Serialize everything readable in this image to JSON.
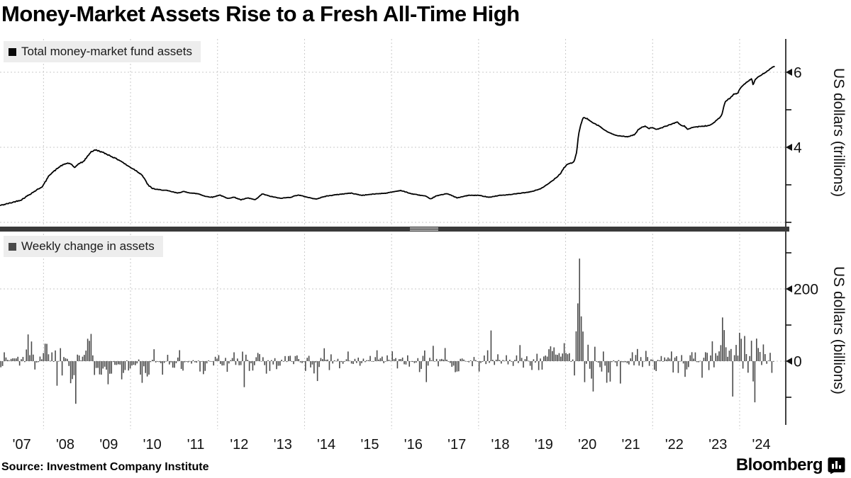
{
  "title": "Money-Market Assets Rise to a Fresh All-Time High",
  "footer": {
    "source": "Source: Investment Company Institute",
    "brand": "Bloomberg",
    "brand_icon": "bloomberg-bubble-chart-icon"
  },
  "colors": {
    "line": "#000000",
    "bars": "#4a4a4a",
    "divider": "#3a3a3a",
    "legend_bg": "#ededed",
    "grid": "#c9c9c9",
    "axis": "#111111"
  },
  "x_axis": {
    "labels": [
      "'07",
      "'08",
      "'09",
      "'10",
      "'11",
      "'12",
      "'13",
      "'14",
      "'15",
      "'16",
      "'17",
      "'18",
      "'19",
      "'20",
      "'21",
      "'22",
      "'23",
      "'24"
    ],
    "first_year": 2007,
    "gridline_years": [
      2008,
      2010,
      2012,
      2014,
      2016,
      2018,
      2020,
      2022,
      2024
    ]
  },
  "chart_data": [
    {
      "type": "line",
      "name": "Total money-market fund assets",
      "legend_label": "Total money-market fund assets",
      "ylabel": "US dollars (trillions)",
      "unit": "USD trillions",
      "x_range": [
        2007.0,
        2024.81
      ],
      "ylim": [
        2.0,
        6.35
      ],
      "yticks_labeled": [
        6,
        4
      ],
      "yticks_minor": [
        5,
        3,
        2
      ],
      "grid_values": [
        6,
        4,
        2
      ],
      "legend_position": "top-left",
      "points": [
        [
          2007.0,
          2.45
        ],
        [
          2007.25,
          2.52
        ],
        [
          2007.49,
          2.6
        ],
        [
          2007.7,
          2.76
        ],
        [
          2007.98,
          2.96
        ],
        [
          2008.14,
          3.27
        ],
        [
          2008.39,
          3.5
        ],
        [
          2008.55,
          3.58
        ],
        [
          2008.63,
          3.56
        ],
        [
          2008.71,
          3.45
        ],
        [
          2008.79,
          3.55
        ],
        [
          2008.92,
          3.62
        ],
        [
          2009.09,
          3.88
        ],
        [
          2009.2,
          3.93
        ],
        [
          2009.28,
          3.9
        ],
        [
          2009.45,
          3.82
        ],
        [
          2009.61,
          3.73
        ],
        [
          2009.77,
          3.64
        ],
        [
          2009.93,
          3.51
        ],
        [
          2010.1,
          3.4
        ],
        [
          2010.26,
          3.27
        ],
        [
          2010.34,
          3.12
        ],
        [
          2010.42,
          2.97
        ],
        [
          2010.5,
          2.91
        ],
        [
          2010.58,
          2.88
        ],
        [
          2010.83,
          2.85
        ],
        [
          2011.08,
          2.78
        ],
        [
          2011.21,
          2.82
        ],
        [
          2011.4,
          2.78
        ],
        [
          2011.56,
          2.76
        ],
        [
          2011.73,
          2.69
        ],
        [
          2011.89,
          2.67
        ],
        [
          2012.05,
          2.73
        ],
        [
          2012.22,
          2.64
        ],
        [
          2012.38,
          2.67
        ],
        [
          2012.54,
          2.6
        ],
        [
          2012.7,
          2.65
        ],
        [
          2012.87,
          2.6
        ],
        [
          2013.03,
          2.76
        ],
        [
          2013.19,
          2.7
        ],
        [
          2013.44,
          2.64
        ],
        [
          2013.68,
          2.67
        ],
        [
          2013.85,
          2.73
        ],
        [
          2014.25,
          2.62
        ],
        [
          2014.5,
          2.7
        ],
        [
          2014.82,
          2.75
        ],
        [
          2015.07,
          2.78
        ],
        [
          2015.31,
          2.72
        ],
        [
          2015.64,
          2.76
        ],
        [
          2015.88,
          2.78
        ],
        [
          2016.21,
          2.85
        ],
        [
          2016.46,
          2.76
        ],
        [
          2016.78,
          2.7
        ],
        [
          2016.89,
          2.62
        ],
        [
          2017.02,
          2.7
        ],
        [
          2017.27,
          2.77
        ],
        [
          2017.51,
          2.65
        ],
        [
          2017.76,
          2.72
        ],
        [
          2018.0,
          2.72
        ],
        [
          2018.25,
          2.67
        ],
        [
          2018.49,
          2.72
        ],
        [
          2018.74,
          2.74
        ],
        [
          2018.98,
          2.78
        ],
        [
          2019.14,
          2.8
        ],
        [
          2019.31,
          2.85
        ],
        [
          2019.47,
          2.92
        ],
        [
          2019.63,
          3.05
        ],
        [
          2019.79,
          3.2
        ],
        [
          2019.88,
          3.3
        ],
        [
          2019.96,
          3.45
        ],
        [
          2020.04,
          3.55
        ],
        [
          2020.13,
          3.58
        ],
        [
          2020.2,
          3.62
        ],
        [
          2020.25,
          3.85
        ],
        [
          2020.3,
          4.35
        ],
        [
          2020.35,
          4.6
        ],
        [
          2020.4,
          4.79
        ],
        [
          2020.49,
          4.77
        ],
        [
          2020.61,
          4.66
        ],
        [
          2020.77,
          4.57
        ],
        [
          2020.93,
          4.43
        ],
        [
          2021.1,
          4.34
        ],
        [
          2021.26,
          4.3
        ],
        [
          2021.42,
          4.28
        ],
        [
          2021.59,
          4.34
        ],
        [
          2021.67,
          4.47
        ],
        [
          2021.75,
          4.53
        ],
        [
          2021.83,
          4.57
        ],
        [
          2021.91,
          4.5
        ],
        [
          2022.0,
          4.53
        ],
        [
          2022.08,
          4.47
        ],
        [
          2022.16,
          4.5
        ],
        [
          2022.32,
          4.57
        ],
        [
          2022.49,
          4.64
        ],
        [
          2022.57,
          4.68
        ],
        [
          2022.65,
          4.58
        ],
        [
          2022.73,
          4.57
        ],
        [
          2022.81,
          4.47
        ],
        [
          2022.9,
          4.53
        ],
        [
          2023.06,
          4.55
        ],
        [
          2023.22,
          4.57
        ],
        [
          2023.3,
          4.58
        ],
        [
          2023.39,
          4.64
        ],
        [
          2023.47,
          4.72
        ],
        [
          2023.55,
          4.79
        ],
        [
          2023.6,
          4.9
        ],
        [
          2023.63,
          5.06
        ],
        [
          2023.66,
          5.19
        ],
        [
          2023.71,
          5.25
        ],
        [
          2023.79,
          5.32
        ],
        [
          2023.87,
          5.42
        ],
        [
          2023.95,
          5.43
        ],
        [
          2024.03,
          5.6
        ],
        [
          2024.11,
          5.69
        ],
        [
          2024.2,
          5.77
        ],
        [
          2024.28,
          5.83
        ],
        [
          2024.31,
          5.66
        ],
        [
          2024.36,
          5.81
        ],
        [
          2024.44,
          5.88
        ],
        [
          2024.52,
          5.94
        ],
        [
          2024.6,
          6.0
        ],
        [
          2024.68,
          6.07
        ],
        [
          2024.76,
          6.13
        ],
        [
          2024.81,
          6.15
        ]
      ],
      "weekly_jitter_model": {
        "seed": 42,
        "eras": [
          [
            2007,
            0.013
          ],
          [
            2010.5,
            0.007
          ],
          [
            2019.3,
            0.011
          ],
          [
            2020.5,
            0.008
          ],
          [
            2023.0,
            0.011
          ]
        ]
      }
    },
    {
      "type": "bar",
      "name": "Weekly change in assets",
      "legend_label": "Weekly change in assets",
      "ylabel": "US dollars (billions)",
      "unit": "USD billions",
      "x_range": [
        2007.02,
        2024.81
      ],
      "ylim": [
        -190,
        350
      ],
      "yticks_labeled": [
        200,
        0
      ],
      "yticks_minor": [
        300,
        100,
        -100
      ],
      "grid_values": [
        200,
        0
      ],
      "legend_position": "top-left",
      "model": "weekly change = derivative of total-assets line plus era noise",
      "noise_eras": [
        [
          2007,
          36
        ],
        [
          2009.6,
          29
        ],
        [
          2010.6,
          23
        ],
        [
          2013,
          19
        ],
        [
          2016.5,
          21
        ],
        [
          2018.5,
          25
        ],
        [
          2020.1,
          38
        ],
        [
          2021.1,
          25
        ],
        [
          2022.7,
          32
        ]
      ],
      "seed": 1337,
      "notable_values": [
        [
          2007.65,
          74
        ],
        [
          2008.3,
          -68
        ],
        [
          2008.73,
          -118
        ],
        [
          2009.0,
          62
        ],
        [
          2009.5,
          -64
        ],
        [
          2010.28,
          -60
        ],
        [
          2012.62,
          -72
        ],
        [
          2014.3,
          -55
        ],
        [
          2016.8,
          -58
        ],
        [
          2018.3,
          85
        ],
        [
          2020.3,
          160
        ],
        [
          2020.33,
          284
        ],
        [
          2020.37,
          124
        ],
        [
          2020.41,
          82
        ],
        [
          2020.62,
          -84
        ],
        [
          2021.28,
          -62
        ],
        [
          2023.6,
          121
        ],
        [
          2023.64,
          86
        ],
        [
          2023.84,
          -98
        ],
        [
          2024.05,
          62
        ],
        [
          2024.34,
          -114
        ]
      ]
    }
  ]
}
